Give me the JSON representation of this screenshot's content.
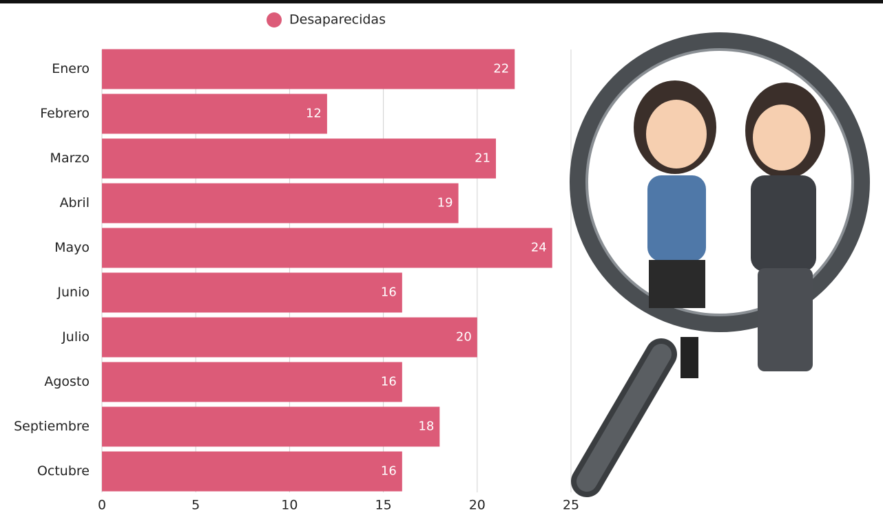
{
  "chart_data": {
    "type": "bar",
    "orientation": "horizontal",
    "categories": [
      "Enero",
      "Febrero",
      "Marzo",
      "Abril",
      "Mayo",
      "Junio",
      "Julio",
      "Agosto",
      "Septiembre",
      "Octubre"
    ],
    "series": [
      {
        "name": "Desaparecidas",
        "color": "#dc5b78",
        "values": [
          22,
          12,
          21,
          19,
          24,
          16,
          20,
          16,
          18,
          16
        ]
      }
    ],
    "xlim": [
      0,
      25
    ],
    "xticks": [
      0,
      5,
      10,
      15,
      20,
      25
    ],
    "grid": true
  }
}
